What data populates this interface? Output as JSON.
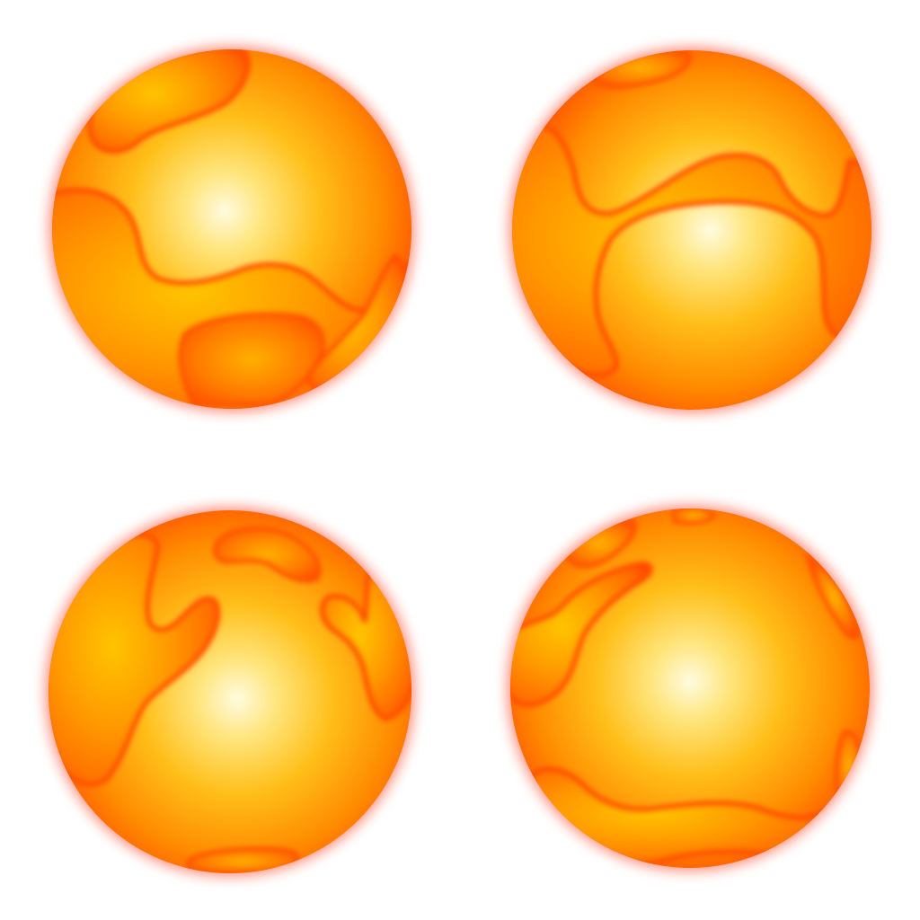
{
  "scene": {
    "background": "#ffffff",
    "palette": {
      "core": "#fffbe0",
      "inner": "#ffe066",
      "mid": "#ffc21a",
      "outer": "#ff8a00",
      "rim": "#ff4a00",
      "glow": "#ff3a1a",
      "patch_light": "#ffb300",
      "patch_dark": "#ff4500"
    },
    "spheres": [
      {
        "name": "sphere-top-left"
      },
      {
        "name": "sphere-top-right"
      },
      {
        "name": "sphere-bottom-left"
      },
      {
        "name": "sphere-bottom-right"
      }
    ]
  }
}
